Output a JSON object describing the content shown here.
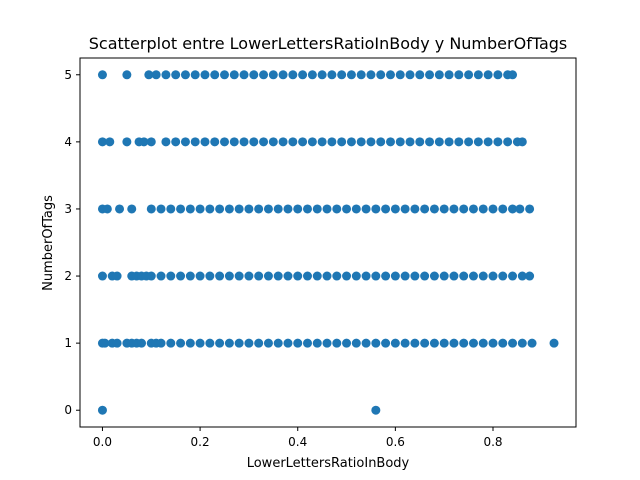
{
  "chart_data": {
    "type": "scatter",
    "title": "Scatterplot entre LowerLettersRatioInBody y NumberOfTags",
    "xlabel": "LowerLettersRatioInBody",
    "ylabel": "NumberOfTags",
    "xlim": [
      -0.046,
      0.97
    ],
    "ylim": [
      -0.25,
      5.25
    ],
    "xticks": [
      0.0,
      0.2,
      0.4,
      0.6,
      0.8
    ],
    "xtick_labels": [
      "0.0",
      "0.2",
      "0.4",
      "0.6",
      "0.8"
    ],
    "yticks": [
      0,
      1,
      2,
      3,
      4,
      5
    ],
    "ytick_labels": [
      "0",
      "1",
      "2",
      "3",
      "4",
      "5"
    ],
    "grid": false,
    "marker_color": "#1f77b4",
    "series": [
      {
        "points": [
          [
            0.0,
            0
          ],
          [
            0.56,
            0
          ],
          [
            0.0,
            1
          ],
          [
            0.005,
            1
          ],
          [
            0.02,
            1
          ],
          [
            0.03,
            1
          ],
          [
            0.05,
            1
          ],
          [
            0.06,
            1
          ],
          [
            0.07,
            1
          ],
          [
            0.08,
            1
          ],
          [
            0.1,
            1
          ],
          [
            0.11,
            1
          ],
          [
            0.12,
            1
          ],
          [
            0.14,
            1
          ],
          [
            0.16,
            1
          ],
          [
            0.18,
            1
          ],
          [
            0.2,
            1
          ],
          [
            0.22,
            1
          ],
          [
            0.24,
            1
          ],
          [
            0.26,
            1
          ],
          [
            0.28,
            1
          ],
          [
            0.3,
            1
          ],
          [
            0.32,
            1
          ],
          [
            0.34,
            1
          ],
          [
            0.36,
            1
          ],
          [
            0.38,
            1
          ],
          [
            0.4,
            1
          ],
          [
            0.42,
            1
          ],
          [
            0.44,
            1
          ],
          [
            0.46,
            1
          ],
          [
            0.48,
            1
          ],
          [
            0.5,
            1
          ],
          [
            0.52,
            1
          ],
          [
            0.54,
            1
          ],
          [
            0.56,
            1
          ],
          [
            0.58,
            1
          ],
          [
            0.6,
            1
          ],
          [
            0.62,
            1
          ],
          [
            0.64,
            1
          ],
          [
            0.66,
            1
          ],
          [
            0.68,
            1
          ],
          [
            0.7,
            1
          ],
          [
            0.72,
            1
          ],
          [
            0.74,
            1
          ],
          [
            0.76,
            1
          ],
          [
            0.78,
            1
          ],
          [
            0.8,
            1
          ],
          [
            0.82,
            1
          ],
          [
            0.84,
            1
          ],
          [
            0.86,
            1
          ],
          [
            0.88,
            1
          ],
          [
            0.925,
            1
          ],
          [
            0.0,
            2
          ],
          [
            0.02,
            2
          ],
          [
            0.03,
            2
          ],
          [
            0.06,
            2
          ],
          [
            0.07,
            2
          ],
          [
            0.08,
            2
          ],
          [
            0.09,
            2
          ],
          [
            0.1,
            2
          ],
          [
            0.12,
            2
          ],
          [
            0.14,
            2
          ],
          [
            0.16,
            2
          ],
          [
            0.18,
            2
          ],
          [
            0.2,
            2
          ],
          [
            0.22,
            2
          ],
          [
            0.24,
            2
          ],
          [
            0.26,
            2
          ],
          [
            0.28,
            2
          ],
          [
            0.3,
            2
          ],
          [
            0.32,
            2
          ],
          [
            0.34,
            2
          ],
          [
            0.36,
            2
          ],
          [
            0.38,
            2
          ],
          [
            0.4,
            2
          ],
          [
            0.42,
            2
          ],
          [
            0.44,
            2
          ],
          [
            0.46,
            2
          ],
          [
            0.48,
            2
          ],
          [
            0.5,
            2
          ],
          [
            0.52,
            2
          ],
          [
            0.54,
            2
          ],
          [
            0.56,
            2
          ],
          [
            0.58,
            2
          ],
          [
            0.6,
            2
          ],
          [
            0.62,
            2
          ],
          [
            0.64,
            2
          ],
          [
            0.66,
            2
          ],
          [
            0.68,
            2
          ],
          [
            0.7,
            2
          ],
          [
            0.72,
            2
          ],
          [
            0.74,
            2
          ],
          [
            0.76,
            2
          ],
          [
            0.78,
            2
          ],
          [
            0.8,
            2
          ],
          [
            0.82,
            2
          ],
          [
            0.84,
            2
          ],
          [
            0.86,
            2
          ],
          [
            0.875,
            2
          ],
          [
            0.0,
            3
          ],
          [
            0.01,
            3
          ],
          [
            0.035,
            3
          ],
          [
            0.06,
            3
          ],
          [
            0.1,
            3
          ],
          [
            0.12,
            3
          ],
          [
            0.14,
            3
          ],
          [
            0.16,
            3
          ],
          [
            0.18,
            3
          ],
          [
            0.2,
            3
          ],
          [
            0.22,
            3
          ],
          [
            0.24,
            3
          ],
          [
            0.26,
            3
          ],
          [
            0.28,
            3
          ],
          [
            0.3,
            3
          ],
          [
            0.32,
            3
          ],
          [
            0.34,
            3
          ],
          [
            0.36,
            3
          ],
          [
            0.38,
            3
          ],
          [
            0.4,
            3
          ],
          [
            0.42,
            3
          ],
          [
            0.44,
            3
          ],
          [
            0.46,
            3
          ],
          [
            0.48,
            3
          ],
          [
            0.5,
            3
          ],
          [
            0.52,
            3
          ],
          [
            0.54,
            3
          ],
          [
            0.56,
            3
          ],
          [
            0.58,
            3
          ],
          [
            0.6,
            3
          ],
          [
            0.62,
            3
          ],
          [
            0.64,
            3
          ],
          [
            0.66,
            3
          ],
          [
            0.68,
            3
          ],
          [
            0.7,
            3
          ],
          [
            0.72,
            3
          ],
          [
            0.74,
            3
          ],
          [
            0.76,
            3
          ],
          [
            0.78,
            3
          ],
          [
            0.8,
            3
          ],
          [
            0.82,
            3
          ],
          [
            0.84,
            3
          ],
          [
            0.855,
            3
          ],
          [
            0.875,
            3
          ],
          [
            0.0,
            4
          ],
          [
            0.015,
            4
          ],
          [
            0.05,
            4
          ],
          [
            0.075,
            4
          ],
          [
            0.085,
            4
          ],
          [
            0.1,
            4
          ],
          [
            0.13,
            4
          ],
          [
            0.15,
            4
          ],
          [
            0.17,
            4
          ],
          [
            0.19,
            4
          ],
          [
            0.21,
            4
          ],
          [
            0.23,
            4
          ],
          [
            0.25,
            4
          ],
          [
            0.27,
            4
          ],
          [
            0.29,
            4
          ],
          [
            0.31,
            4
          ],
          [
            0.33,
            4
          ],
          [
            0.35,
            4
          ],
          [
            0.37,
            4
          ],
          [
            0.39,
            4
          ],
          [
            0.41,
            4
          ],
          [
            0.43,
            4
          ],
          [
            0.45,
            4
          ],
          [
            0.47,
            4
          ],
          [
            0.49,
            4
          ],
          [
            0.51,
            4
          ],
          [
            0.53,
            4
          ],
          [
            0.55,
            4
          ],
          [
            0.57,
            4
          ],
          [
            0.59,
            4
          ],
          [
            0.61,
            4
          ],
          [
            0.63,
            4
          ],
          [
            0.65,
            4
          ],
          [
            0.67,
            4
          ],
          [
            0.69,
            4
          ],
          [
            0.71,
            4
          ],
          [
            0.73,
            4
          ],
          [
            0.75,
            4
          ],
          [
            0.77,
            4
          ],
          [
            0.79,
            4
          ],
          [
            0.81,
            4
          ],
          [
            0.83,
            4
          ],
          [
            0.85,
            4
          ],
          [
            0.86,
            4
          ],
          [
            0.0,
            5
          ],
          [
            0.05,
            5
          ],
          [
            0.095,
            5
          ],
          [
            0.11,
            5
          ],
          [
            0.13,
            5
          ],
          [
            0.15,
            5
          ],
          [
            0.17,
            5
          ],
          [
            0.19,
            5
          ],
          [
            0.21,
            5
          ],
          [
            0.23,
            5
          ],
          [
            0.25,
            5
          ],
          [
            0.27,
            5
          ],
          [
            0.29,
            5
          ],
          [
            0.31,
            5
          ],
          [
            0.33,
            5
          ],
          [
            0.35,
            5
          ],
          [
            0.37,
            5
          ],
          [
            0.39,
            5
          ],
          [
            0.41,
            5
          ],
          [
            0.43,
            5
          ],
          [
            0.45,
            5
          ],
          [
            0.47,
            5
          ],
          [
            0.49,
            5
          ],
          [
            0.51,
            5
          ],
          [
            0.53,
            5
          ],
          [
            0.55,
            5
          ],
          [
            0.57,
            5
          ],
          [
            0.59,
            5
          ],
          [
            0.61,
            5
          ],
          [
            0.63,
            5
          ],
          [
            0.65,
            5
          ],
          [
            0.67,
            5
          ],
          [
            0.69,
            5
          ],
          [
            0.71,
            5
          ],
          [
            0.73,
            5
          ],
          [
            0.75,
            5
          ],
          [
            0.77,
            5
          ],
          [
            0.79,
            5
          ],
          [
            0.81,
            5
          ],
          [
            0.83,
            5
          ],
          [
            0.84,
            5
          ]
        ]
      }
    ]
  }
}
